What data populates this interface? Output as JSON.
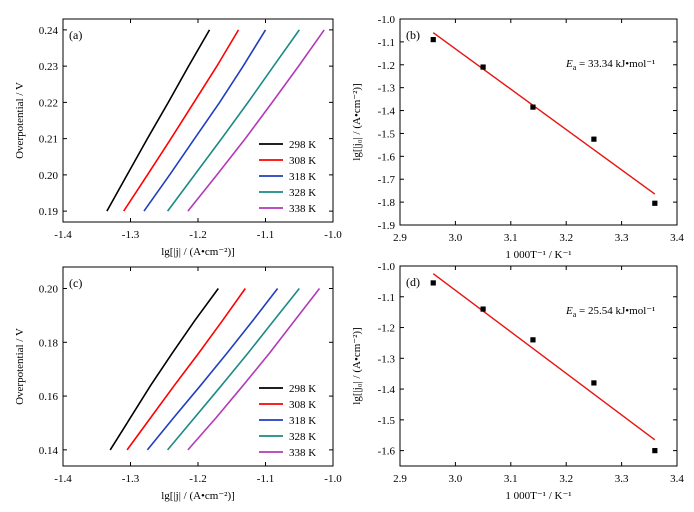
{
  "chart_data": [
    {
      "id": "a",
      "type": "line",
      "panel_label": "(a)",
      "xlabel": "lg[|j| / (A•cm⁻²)]",
      "ylabel": "Overpotential / V",
      "xlim": [
        -1.4,
        -1.0
      ],
      "ylim": [
        0.187,
        0.243
      ],
      "xticks": [
        -1.4,
        -1.3,
        -1.2,
        -1.1,
        -1.0
      ],
      "xtick_labels": [
        "-1.4",
        "-1.3",
        "-1.2",
        "-1.1",
        "-1.0"
      ],
      "yticks": [
        0.19,
        0.2,
        0.21,
        0.22,
        0.23,
        0.24
      ],
      "ytick_labels": [
        "0.19",
        "0.20",
        "0.21",
        "0.22",
        "0.23",
        "0.24"
      ],
      "legend_position": "bottom-right",
      "series": [
        {
          "name": "298 K",
          "color": "#000000",
          "x": [
            -1.335,
            -1.305,
            -1.275,
            -1.244,
            -1.214,
            -1.183
          ],
          "y": [
            0.19,
            0.2,
            0.21,
            0.22,
            0.23,
            0.24
          ]
        },
        {
          "name": "308 K",
          "color": "#ff0000",
          "x": [
            -1.31,
            -1.275,
            -1.24,
            -1.206,
            -1.172,
            -1.14
          ],
          "y": [
            0.19,
            0.2,
            0.21,
            0.22,
            0.23,
            0.24
          ]
        },
        {
          "name": "318 K",
          "color": "#1f3fbf",
          "x": [
            -1.28,
            -1.242,
            -1.205,
            -1.168,
            -1.133,
            -1.1
          ],
          "y": [
            0.19,
            0.2,
            0.21,
            0.22,
            0.23,
            0.24
          ]
        },
        {
          "name": "328 K",
          "color": "#1a8a85",
          "x": [
            -1.245,
            -1.205,
            -1.165,
            -1.126,
            -1.088,
            -1.05
          ],
          "y": [
            0.19,
            0.2,
            0.21,
            0.22,
            0.23,
            0.24
          ]
        },
        {
          "name": "338 K",
          "color": "#b23ab8",
          "x": [
            -1.215,
            -1.172,
            -1.13,
            -1.09,
            -1.051,
            -1.013
          ],
          "y": [
            0.19,
            0.2,
            0.21,
            0.22,
            0.23,
            0.24
          ]
        }
      ]
    },
    {
      "id": "b",
      "type": "scatter",
      "panel_label": "(b)",
      "xlabel": "1 000T⁻¹ / K⁻¹",
      "ylabel": "lg[|j₀| / (A•cm⁻²)]",
      "xlim": [
        2.9,
        3.4
      ],
      "ylim": [
        -1.9,
        -1.0
      ],
      "xticks": [
        2.9,
        3.0,
        3.1,
        3.2,
        3.3,
        3.4
      ],
      "xtick_labels": [
        "2.9",
        "3.0",
        "3.1",
        "3.2",
        "3.3",
        "3.4"
      ],
      "yticks": [
        -1.9,
        -1.8,
        -1.7,
        -1.6,
        -1.5,
        -1.4,
        -1.3,
        -1.2,
        -1.1,
        -1.0
      ],
      "ytick_labels": [
        "-1.9",
        "-1.8",
        "-1.7",
        "-1.6",
        "-1.5",
        "-1.4",
        "-1.3",
        "-1.2",
        "-1.1",
        "-1.0"
      ],
      "points": {
        "x": [
          2.96,
          3.05,
          3.14,
          3.25,
          3.36
        ],
        "y": [
          -1.09,
          -1.21,
          -1.385,
          -1.525,
          -1.805
        ]
      },
      "fit": {
        "color": "#e8140f",
        "x": [
          2.96,
          3.36
        ],
        "y": [
          -1.06,
          -1.765
        ]
      },
      "annotation": {
        "symbol": "E",
        "subscript": "a",
        "text": " = 33.34 kJ•mol⁻¹"
      }
    },
    {
      "id": "c",
      "type": "line",
      "panel_label": "(c)",
      "xlabel": "lg[|j| / (A•cm⁻²)]",
      "ylabel": "Overpotential / V",
      "xlim": [
        -1.4,
        -1.0
      ],
      "ylim": [
        0.134,
        0.208
      ],
      "xticks": [
        -1.4,
        -1.3,
        -1.2,
        -1.1,
        -1.0
      ],
      "xtick_labels": [
        "-1.4",
        "-1.3",
        "-1.2",
        "-1.1",
        "-1.0"
      ],
      "yticks": [
        0.14,
        0.16,
        0.18,
        0.2
      ],
      "ytick_labels": [
        "0.14",
        "0.16",
        "0.18",
        "0.20"
      ],
      "legend_position": "bottom-right",
      "series": [
        {
          "name": "298 K",
          "color": "#000000",
          "x": [
            -1.33,
            -1.3,
            -1.27,
            -1.238,
            -1.205,
            -1.17
          ],
          "y": [
            0.14,
            0.152,
            0.164,
            0.176,
            0.188,
            0.2
          ]
        },
        {
          "name": "308 K",
          "color": "#ff0000",
          "x": [
            -1.305,
            -1.27,
            -1.235,
            -1.199,
            -1.164,
            -1.13
          ],
          "y": [
            0.14,
            0.152,
            0.164,
            0.176,
            0.188,
            0.2
          ]
        },
        {
          "name": "318 K",
          "color": "#1f3fbf",
          "x": [
            -1.275,
            -1.236,
            -1.196,
            -1.157,
            -1.119,
            -1.082
          ],
          "y": [
            0.14,
            0.152,
            0.164,
            0.176,
            0.188,
            0.2
          ]
        },
        {
          "name": "328 K",
          "color": "#1a8a85",
          "x": [
            -1.245,
            -1.205,
            -1.165,
            -1.126,
            -1.088,
            -1.05
          ],
          "y": [
            0.14,
            0.152,
            0.164,
            0.176,
            0.188,
            0.2
          ]
        },
        {
          "name": "338 K",
          "color": "#b23ab8",
          "x": [
            -1.215,
            -1.173,
            -1.133,
            -1.094,
            -1.057,
            -1.02
          ],
          "y": [
            0.14,
            0.152,
            0.164,
            0.176,
            0.188,
            0.2
          ]
        }
      ]
    },
    {
      "id": "d",
      "type": "scatter",
      "panel_label": "(d)",
      "xlabel": "1 000T⁻¹ / K⁻¹",
      "ylabel": "lg[|j₀| / (A•cm⁻²)]",
      "xlim": [
        2.9,
        3.4
      ],
      "ylim": [
        -1.65,
        -1.0
      ],
      "xticks": [
        2.9,
        3.0,
        3.1,
        3.2,
        3.3,
        3.4
      ],
      "xtick_labels": [
        "2.9",
        "3.0",
        "3.1",
        "3.2",
        "3.3",
        "3.4"
      ],
      "yticks": [
        -1.6,
        -1.5,
        -1.4,
        -1.3,
        -1.2,
        -1.1,
        -1.0
      ],
      "ytick_labels": [
        "-1.6",
        "-1.5",
        "-1.4",
        "-1.3",
        "-1.2",
        "-1.1",
        "-1.0"
      ],
      "points": {
        "x": [
          2.96,
          3.05,
          3.14,
          3.25,
          3.36
        ],
        "y": [
          -1.055,
          -1.14,
          -1.24,
          -1.38,
          -1.6
        ]
      },
      "fit": {
        "color": "#e8140f",
        "x": [
          2.96,
          3.36
        ],
        "y": [
          -1.025,
          -1.565
        ]
      },
      "annotation": {
        "symbol": "E",
        "subscript": "a",
        "text": " = 25.54 kJ•mol⁻¹"
      }
    }
  ]
}
